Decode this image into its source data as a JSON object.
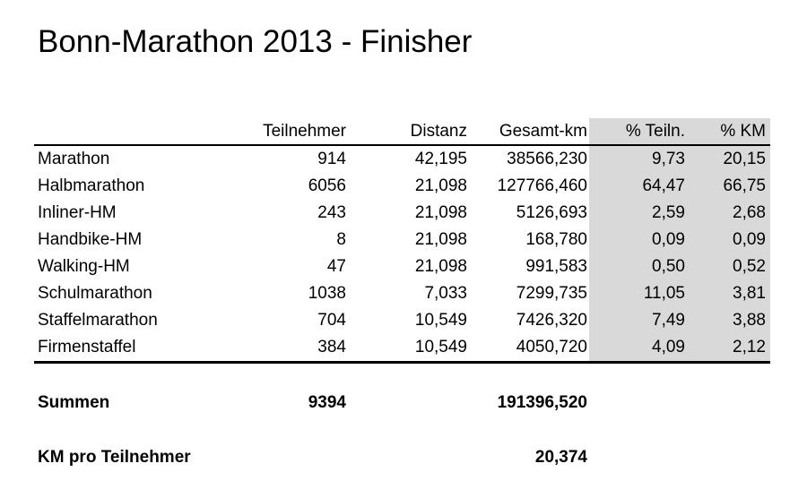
{
  "title": "Bonn-Marathon 2013 - Finisher",
  "colors": {
    "shaded_columns": "#d9d9d9",
    "rules": "#000000"
  },
  "table": {
    "headers": [
      "",
      "Teilnehmer",
      "Distanz",
      "Gesamt-km",
      "% Teiln.",
      "% KM"
    ],
    "rows": [
      [
        "Marathon",
        "914",
        "42,195",
        "38566,230",
        "9,73",
        "20,15"
      ],
      [
        "Halbmarathon",
        "6056",
        "21,098",
        "127766,460",
        "64,47",
        "66,75"
      ],
      [
        "Inliner-HM",
        "243",
        "21,098",
        "5126,693",
        "2,59",
        "2,68"
      ],
      [
        "Handbike-HM",
        "8",
        "21,098",
        "168,780",
        "0,09",
        "0,09"
      ],
      [
        "Walking-HM",
        "47",
        "21,098",
        "991,583",
        "0,50",
        "0,52"
      ],
      [
        "Schulmarathon",
        "1038",
        "7,033",
        "7299,735",
        "11,05",
        "3,81"
      ],
      [
        "Staffelmarathon",
        "704",
        "10,549",
        "7426,320",
        "7,49",
        "3,88"
      ],
      [
        "Firmenstaffel",
        "384",
        "10,549",
        "4050,720",
        "4,09",
        "2,12"
      ]
    ]
  },
  "summary": {
    "summen_label": "Summen",
    "summen_teilnehmer": "9394",
    "summen_gesamt_km": "191396,520",
    "km_pro_label": "KM pro Teilnehmer",
    "km_pro_value": "20,374"
  }
}
